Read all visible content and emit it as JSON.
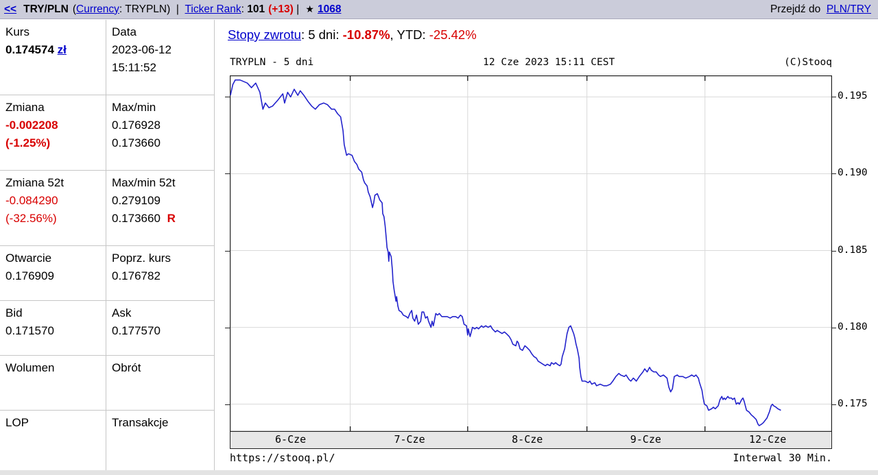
{
  "topbar": {
    "back_link": "<<",
    "symbol": "TRY/PLN",
    "paren_open": "(",
    "currency_link": "Currency",
    "currency_rest": ": TRYPLN)  |  ",
    "ticker_rank_link": "Ticker Rank",
    "colon": ": ",
    "rank_value": "101",
    "rank_change": "(+13)",
    "sep": " | ",
    "star_icon": "★",
    "fav_count": "1068",
    "goto_label": "Przejdź do ",
    "goto_link": "PLN/TRY"
  },
  "quote": {
    "rows": [
      {
        "left": {
          "label": "Kurs",
          "value": "0.174574",
          "unit_link": "zł"
        },
        "right": {
          "label": "Data",
          "line1": "2023-06-12",
          "line2": "15:11:52"
        }
      },
      {
        "left": {
          "label": "Zmiana",
          "line1": "-0.002208",
          "line2": "(-1.25%)"
        },
        "right": {
          "label": "Max/min",
          "line1": "0.176928",
          "line2": "0.173660"
        }
      },
      {
        "left": {
          "label": "Zmiana 52t",
          "line1": "-0.084290",
          "line2": "(-32.56%)"
        },
        "right": {
          "label": "Max/min 52t",
          "line1": "0.279109",
          "line2": "0.173660",
          "flag": "R"
        }
      },
      {
        "left": {
          "label": "Otwarcie",
          "line1": "0.176909"
        },
        "right": {
          "label": "Poprz. kurs",
          "line1": "0.176782"
        }
      },
      {
        "left": {
          "label": "Bid",
          "line1": "0.171570"
        },
        "right": {
          "label": "Ask",
          "line1": "0.177570"
        }
      },
      {
        "left": {
          "label": "Wolumen"
        },
        "right": {
          "label": "Obrót"
        }
      },
      {
        "left": {
          "label": "LOP"
        },
        "right": {
          "label": "Transakcje"
        }
      }
    ]
  },
  "returns": {
    "link": "Stopy zwrotu",
    "mid1": ": 5 dni: ",
    "val_5d": "-10.87%",
    "mid2": ", YTD: ",
    "val_ytd": "-25.42%"
  },
  "chart_meta": {
    "title_left": "TRYPLN - 5 dni",
    "title_center": "12 Cze 2023 15:11 CEST",
    "title_right": "(C)Stooq",
    "footer_left": "https://stooq.pl/",
    "footer_right": "Interwal 30 Min."
  },
  "colors": {
    "link_blue": "#0000cc",
    "alert_red": "#d80000",
    "line_blue": "#2323cc",
    "grid_gray": "#d9d9d9",
    "frame_dark": "#222222",
    "band_bg": "#e7e7e7",
    "topbar_bg": "#cbccda"
  },
  "chart_data": {
    "type": "line",
    "title": "TRYPLN - 5 dni",
    "timestamp": "12 Cze 2023 15:11 CEST",
    "interval": "30 Min.",
    "x_tick_labels": [
      "6-Cze",
      "7-Cze",
      "8-Cze",
      "9-Cze",
      "12-Cze"
    ],
    "x_label_positions": [
      0.1,
      0.298,
      0.494,
      0.691,
      0.894
    ],
    "x_gridlines": [
      0.2,
      0.395,
      0.593,
      0.789
    ],
    "y_ticks": [
      0.195,
      0.19,
      0.185,
      0.18,
      0.175
    ],
    "y_tick_labels": [
      "0.195",
      "0.190",
      "0.185",
      "0.180",
      "0.175"
    ],
    "ylim": [
      0.1732,
      0.1964
    ],
    "grid": true,
    "legend": false,
    "points": [
      [
        0.001,
        0.1951
      ],
      [
        0.005,
        0.1958
      ],
      [
        0.009,
        0.1961
      ],
      [
        0.017,
        0.1961
      ],
      [
        0.029,
        0.1959
      ],
      [
        0.036,
        0.1956
      ],
      [
        0.043,
        0.1959
      ],
      [
        0.05,
        0.1953
      ],
      [
        0.055,
        0.1942
      ],
      [
        0.059,
        0.1946
      ],
      [
        0.065,
        0.1943
      ],
      [
        0.071,
        0.1944
      ],
      [
        0.08,
        0.1948
      ],
      [
        0.088,
        0.1952
      ],
      [
        0.091,
        0.1946
      ],
      [
        0.096,
        0.1953
      ],
      [
        0.101,
        0.195
      ],
      [
        0.107,
        0.1955
      ],
      [
        0.113,
        0.1951
      ],
      [
        0.117,
        0.1954
      ],
      [
        0.123,
        0.1951
      ],
      [
        0.13,
        0.1947
      ],
      [
        0.136,
        0.1944
      ],
      [
        0.142,
        0.1942
      ],
      [
        0.149,
        0.1945
      ],
      [
        0.156,
        0.1946
      ],
      [
        0.162,
        0.1945
      ],
      [
        0.169,
        0.1942
      ],
      [
        0.174,
        0.1942
      ],
      [
        0.179,
        0.1939
      ],
      [
        0.184,
        0.1937
      ],
      [
        0.188,
        0.1928
      ],
      [
        0.19,
        0.1919
      ],
      [
        0.194,
        0.1912
      ],
      [
        0.197,
        0.1913
      ],
      [
        0.203,
        0.1912
      ],
      [
        0.207,
        0.1908
      ],
      [
        0.211,
        0.1906
      ],
      [
        0.214,
        0.1903
      ],
      [
        0.219,
        0.1901
      ],
      [
        0.222,
        0.1896
      ],
      [
        0.224,
        0.1894
      ],
      [
        0.228,
        0.1892
      ],
      [
        0.23,
        0.1888
      ],
      [
        0.233,
        0.1885
      ],
      [
        0.237,
        0.1878
      ],
      [
        0.239,
        0.1881
      ],
      [
        0.241,
        0.1886
      ],
      [
        0.245,
        0.1887
      ],
      [
        0.247,
        0.1885
      ],
      [
        0.249,
        0.1883
      ],
      [
        0.253,
        0.1881
      ],
      [
        0.254,
        0.1874
      ],
      [
        0.256,
        0.1872
      ],
      [
        0.258,
        0.1866
      ],
      [
        0.26,
        0.1857
      ],
      [
        0.261,
        0.1852
      ],
      [
        0.263,
        0.1849
      ],
      [
        0.264,
        0.1843
      ],
      [
        0.265,
        0.1849
      ],
      [
        0.268,
        0.1846
      ],
      [
        0.27,
        0.1837
      ],
      [
        0.271,
        0.183
      ],
      [
        0.273,
        0.1824
      ],
      [
        0.276,
        0.1817
      ],
      [
        0.277,
        0.182
      ],
      [
        0.279,
        0.1814
      ],
      [
        0.281,
        0.1811
      ],
      [
        0.285,
        0.181
      ],
      [
        0.288,
        0.1808
      ],
      [
        0.293,
        0.1807
      ],
      [
        0.296,
        0.1806
      ],
      [
        0.299,
        0.1809
      ],
      [
        0.302,
        0.1811
      ],
      [
        0.304,
        0.1806
      ],
      [
        0.307,
        0.1804
      ],
      [
        0.31,
        0.1808
      ],
      [
        0.313,
        0.1802
      ],
      [
        0.317,
        0.1804
      ],
      [
        0.319,
        0.181
      ],
      [
        0.322,
        0.181
      ],
      [
        0.325,
        0.1806
      ],
      [
        0.328,
        0.1807
      ],
      [
        0.33,
        0.1804
      ],
      [
        0.334,
        0.18
      ],
      [
        0.336,
        0.1804
      ],
      [
        0.338,
        0.1801
      ],
      [
        0.342,
        0.1809
      ],
      [
        0.345,
        0.1808
      ],
      [
        0.348,
        0.1809
      ],
      [
        0.352,
        0.1807
      ],
      [
        0.357,
        0.1807
      ],
      [
        0.361,
        0.1807
      ],
      [
        0.366,
        0.1806
      ],
      [
        0.37,
        0.1807
      ],
      [
        0.375,
        0.1807
      ],
      [
        0.379,
        0.1806
      ],
      [
        0.383,
        0.1808
      ],
      [
        0.386,
        0.1807
      ],
      [
        0.389,
        0.1802
      ],
      [
        0.393,
        0.1801
      ],
      [
        0.395,
        0.1795
      ],
      [
        0.396,
        0.1799
      ],
      [
        0.399,
        0.1794
      ],
      [
        0.401,
        0.1797
      ],
      [
        0.403,
        0.18
      ],
      [
        0.407,
        0.1799
      ],
      [
        0.41,
        0.18
      ],
      [
        0.413,
        0.1799
      ],
      [
        0.418,
        0.1801
      ],
      [
        0.421,
        0.18
      ],
      [
        0.425,
        0.1801
      ],
      [
        0.429,
        0.18
      ],
      [
        0.433,
        0.1801
      ],
      [
        0.436,
        0.1799
      ],
      [
        0.441,
        0.1797
      ],
      [
        0.444,
        0.1798
      ],
      [
        0.448,
        0.1797
      ],
      [
        0.452,
        0.1796
      ],
      [
        0.456,
        0.1797
      ],
      [
        0.459,
        0.1796
      ],
      [
        0.464,
        0.1794
      ],
      [
        0.467,
        0.1792
      ],
      [
        0.47,
        0.1789
      ],
      [
        0.475,
        0.1788
      ],
      [
        0.477,
        0.1791
      ],
      [
        0.479,
        0.179
      ],
      [
        0.482,
        0.1786
      ],
      [
        0.486,
        0.1785
      ],
      [
        0.49,
        0.1788
      ],
      [
        0.493,
        0.1787
      ],
      [
        0.498,
        0.1785
      ],
      [
        0.501,
        0.1783
      ],
      [
        0.505,
        0.1781
      ],
      [
        0.509,
        0.178
      ],
      [
        0.512,
        0.1778
      ],
      [
        0.516,
        0.1777
      ],
      [
        0.52,
        0.1776
      ],
      [
        0.524,
        0.1775
      ],
      [
        0.527,
        0.1776
      ],
      [
        0.532,
        0.1775
      ],
      [
        0.534,
        0.1777
      ],
      [
        0.538,
        0.1776
      ],
      [
        0.541,
        0.1777
      ],
      [
        0.544,
        0.1776
      ],
      [
        0.548,
        0.1775
      ],
      [
        0.55,
        0.1776
      ],
      [
        0.552,
        0.1781
      ],
      [
        0.556,
        0.1786
      ],
      [
        0.558,
        0.1791
      ],
      [
        0.56,
        0.1796
      ],
      [
        0.563,
        0.18
      ],
      [
        0.566,
        0.1801
      ],
      [
        0.568,
        0.1799
      ],
      [
        0.571,
        0.1796
      ],
      [
        0.573,
        0.1793
      ],
      [
        0.575,
        0.1789
      ],
      [
        0.577,
        0.1786
      ],
      [
        0.58,
        0.178
      ],
      [
        0.581,
        0.1774
      ],
      [
        0.583,
        0.1768
      ],
      [
        0.585,
        0.1765
      ],
      [
        0.59,
        0.1765
      ],
      [
        0.595,
        0.1764
      ],
      [
        0.598,
        0.1765
      ],
      [
        0.601,
        0.1763
      ],
      [
        0.606,
        0.1764
      ],
      [
        0.609,
        0.1762
      ],
      [
        0.615,
        0.1763
      ],
      [
        0.621,
        0.1762
      ],
      [
        0.626,
        0.1762
      ],
      [
        0.632,
        0.1763
      ],
      [
        0.636,
        0.1765
      ],
      [
        0.641,
        0.1768
      ],
      [
        0.646,
        0.177
      ],
      [
        0.649,
        0.1769
      ],
      [
        0.655,
        0.1768
      ],
      [
        0.658,
        0.1769
      ],
      [
        0.663,
        0.1766
      ],
      [
        0.666,
        0.1765
      ],
      [
        0.67,
        0.1767
      ],
      [
        0.675,
        0.1765
      ],
      [
        0.68,
        0.1768
      ],
      [
        0.686,
        0.1771
      ],
      [
        0.689,
        0.1773
      ],
      [
        0.693,
        0.1771
      ],
      [
        0.697,
        0.1774
      ],
      [
        0.7,
        0.1772
      ],
      [
        0.704,
        0.1771
      ],
      [
        0.708,
        0.1771
      ],
      [
        0.712,
        0.1769
      ],
      [
        0.715,
        0.1768
      ],
      [
        0.72,
        0.1769
      ],
      [
        0.726,
        0.1767
      ],
      [
        0.729,
        0.1761
      ],
      [
        0.732,
        0.1758
      ],
      [
        0.735,
        0.176
      ],
      [
        0.738,
        0.1768
      ],
      [
        0.743,
        0.1769
      ],
      [
        0.746,
        0.1768
      ],
      [
        0.752,
        0.1768
      ],
      [
        0.757,
        0.1767
      ],
      [
        0.763,
        0.1768
      ],
      [
        0.767,
        0.1769
      ],
      [
        0.771,
        0.1768
      ],
      [
        0.774,
        0.1769
      ],
      [
        0.778,
        0.1767
      ],
      [
        0.78,
        0.1764
      ],
      [
        0.784,
        0.1759
      ],
      [
        0.786,
        0.1754
      ],
      [
        0.788,
        0.175
      ],
      [
        0.792,
        0.1749
      ],
      [
        0.795,
        0.1746
      ],
      [
        0.8,
        0.1747
      ],
      [
        0.803,
        0.1748
      ],
      [
        0.806,
        0.1747
      ],
      [
        0.811,
        0.1749
      ],
      [
        0.814,
        0.1753
      ],
      [
        0.817,
        0.1755
      ],
      [
        0.819,
        0.1753
      ],
      [
        0.821,
        0.1754
      ],
      [
        0.823,
        0.1753
      ],
      [
        0.827,
        0.1755
      ],
      [
        0.829,
        0.1754
      ],
      [
        0.833,
        0.1754
      ],
      [
        0.835,
        0.1753
      ],
      [
        0.838,
        0.1754
      ],
      [
        0.841,
        0.175
      ],
      [
        0.844,
        0.1751
      ],
      [
        0.846,
        0.175
      ],
      [
        0.85,
        0.1753
      ],
      [
        0.852,
        0.1754
      ],
      [
        0.854,
        0.1752
      ],
      [
        0.858,
        0.1746
      ],
      [
        0.862,
        0.1745
      ],
      [
        0.866,
        0.1743
      ],
      [
        0.869,
        0.1742
      ],
      [
        0.874,
        0.174
      ],
      [
        0.877,
        0.1737
      ],
      [
        0.879,
        0.1736
      ],
      [
        0.883,
        0.1737
      ],
      [
        0.886,
        0.1738
      ],
      [
        0.888,
        0.1739
      ],
      [
        0.892,
        0.1741
      ],
      [
        0.894,
        0.1743
      ],
      [
        0.896,
        0.1745
      ],
      [
        0.899,
        0.1749
      ],
      [
        0.901,
        0.175
      ],
      [
        0.903,
        0.1749
      ],
      [
        0.907,
        0.1748
      ],
      [
        0.91,
        0.1747
      ],
      [
        0.915,
        0.1746
      ]
    ]
  }
}
